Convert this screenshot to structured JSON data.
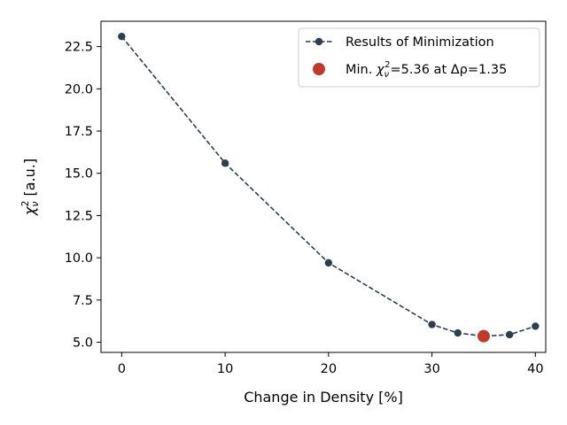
{
  "chart_data": {
    "type": "line",
    "xlabel": "Change in Density [%]",
    "ylabel": "[a.u.]",
    "ylabel_symbol": "χ",
    "ylabel_subscript": "ν",
    "ylabel_superscript": "2",
    "xlim": [
      -2,
      41
    ],
    "ylim": [
      4.4,
      24.0
    ],
    "xticks": [
      0,
      10,
      20,
      30,
      40
    ],
    "xtick_labels": [
      "0",
      "10",
      "20",
      "30",
      "40"
    ],
    "yticks": [
      5.0,
      7.5,
      10.0,
      12.5,
      15.0,
      17.5,
      20.0,
      22.5
    ],
    "ytick_labels": [
      "5.0",
      "7.5",
      "10.0",
      "12.5",
      "15.0",
      "17.5",
      "20.0",
      "22.5"
    ],
    "grid": false,
    "legend_position": "top-right",
    "series": [
      {
        "name": "Results of Minimization",
        "style": "dashed line with circle markers",
        "color": "#2c3e50",
        "x": [
          0,
          10,
          20,
          30,
          32.5,
          35,
          37.5,
          40
        ],
        "y": [
          23.1,
          15.6,
          9.7,
          6.05,
          5.55,
          5.36,
          5.45,
          5.95
        ]
      },
      {
        "name_prefix": "Min. ",
        "name_suffix": "=5.36 at Δρ=1.35",
        "style": "large circle marker",
        "color": "#c0392b",
        "x": [
          35
        ],
        "y": [
          5.36
        ]
      }
    ]
  }
}
